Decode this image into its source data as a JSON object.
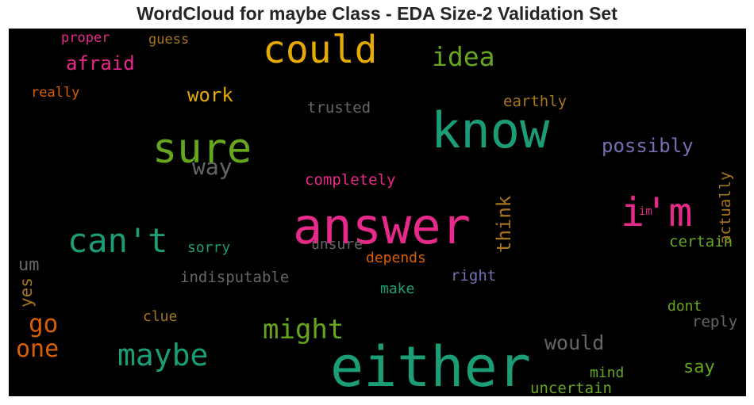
{
  "chart_data": {
    "type": "wordcloud",
    "title": "WordCloud for maybe Class - EDA Size-2 Validation Set",
    "words": [
      {
        "text": "either",
        "color": "#1b9e77"
      },
      {
        "text": "answer",
        "color": "#e7298a"
      },
      {
        "text": "know",
        "color": "#1b9e77"
      },
      {
        "text": "sure",
        "color": "#66a61e"
      },
      {
        "text": "could",
        "color": "#e6ab02"
      },
      {
        "text": "i'm",
        "color": "#e7298a"
      },
      {
        "text": "can't",
        "color": "#1b9e77"
      },
      {
        "text": "maybe",
        "color": "#1b9e77"
      },
      {
        "text": "might",
        "color": "#66a61e"
      },
      {
        "text": "idea",
        "color": "#66a61e"
      },
      {
        "text": "one",
        "color": "#d95f02"
      },
      {
        "text": "go",
        "color": "#d95f02"
      },
      {
        "text": "afraid",
        "color": "#e7298a"
      },
      {
        "text": "way",
        "color": "#666666"
      },
      {
        "text": "possibly",
        "color": "#7570b3"
      },
      {
        "text": "would",
        "color": "#666666"
      },
      {
        "text": "work",
        "color": "#e6ab02"
      },
      {
        "text": "think",
        "color": "#a6761d"
      },
      {
        "text": "um",
        "color": "#666666"
      },
      {
        "text": "say",
        "color": "#66a61e"
      },
      {
        "text": "yes",
        "color": "#a6761d"
      },
      {
        "text": "actually",
        "color": "#a6761d"
      },
      {
        "text": "indisputable",
        "color": "#666666"
      },
      {
        "text": "completely",
        "color": "#e7298a"
      },
      {
        "text": "certain",
        "color": "#66a61e"
      },
      {
        "text": "earthly",
        "color": "#a6761d"
      },
      {
        "text": "trusted",
        "color": "#666666"
      },
      {
        "text": "uncertain",
        "color": "#66a61e"
      },
      {
        "text": "depends",
        "color": "#d95f02"
      },
      {
        "text": "unsure",
        "color": "#666666"
      },
      {
        "text": "reply",
        "color": "#666666"
      },
      {
        "text": "right",
        "color": "#7570b3"
      },
      {
        "text": "sorry",
        "color": "#1b9e77"
      },
      {
        "text": "mind",
        "color": "#66a61e"
      },
      {
        "text": "make",
        "color": "#1b9e77"
      },
      {
        "text": "dont",
        "color": "#66a61e"
      },
      {
        "text": "clue",
        "color": "#a6761d"
      },
      {
        "text": "proper",
        "color": "#e7298a"
      },
      {
        "text": "guess",
        "color": "#a6761d"
      },
      {
        "text": "really",
        "color": "#d95f02"
      },
      {
        "text": "im",
        "color": "#e7298a"
      }
    ]
  }
}
